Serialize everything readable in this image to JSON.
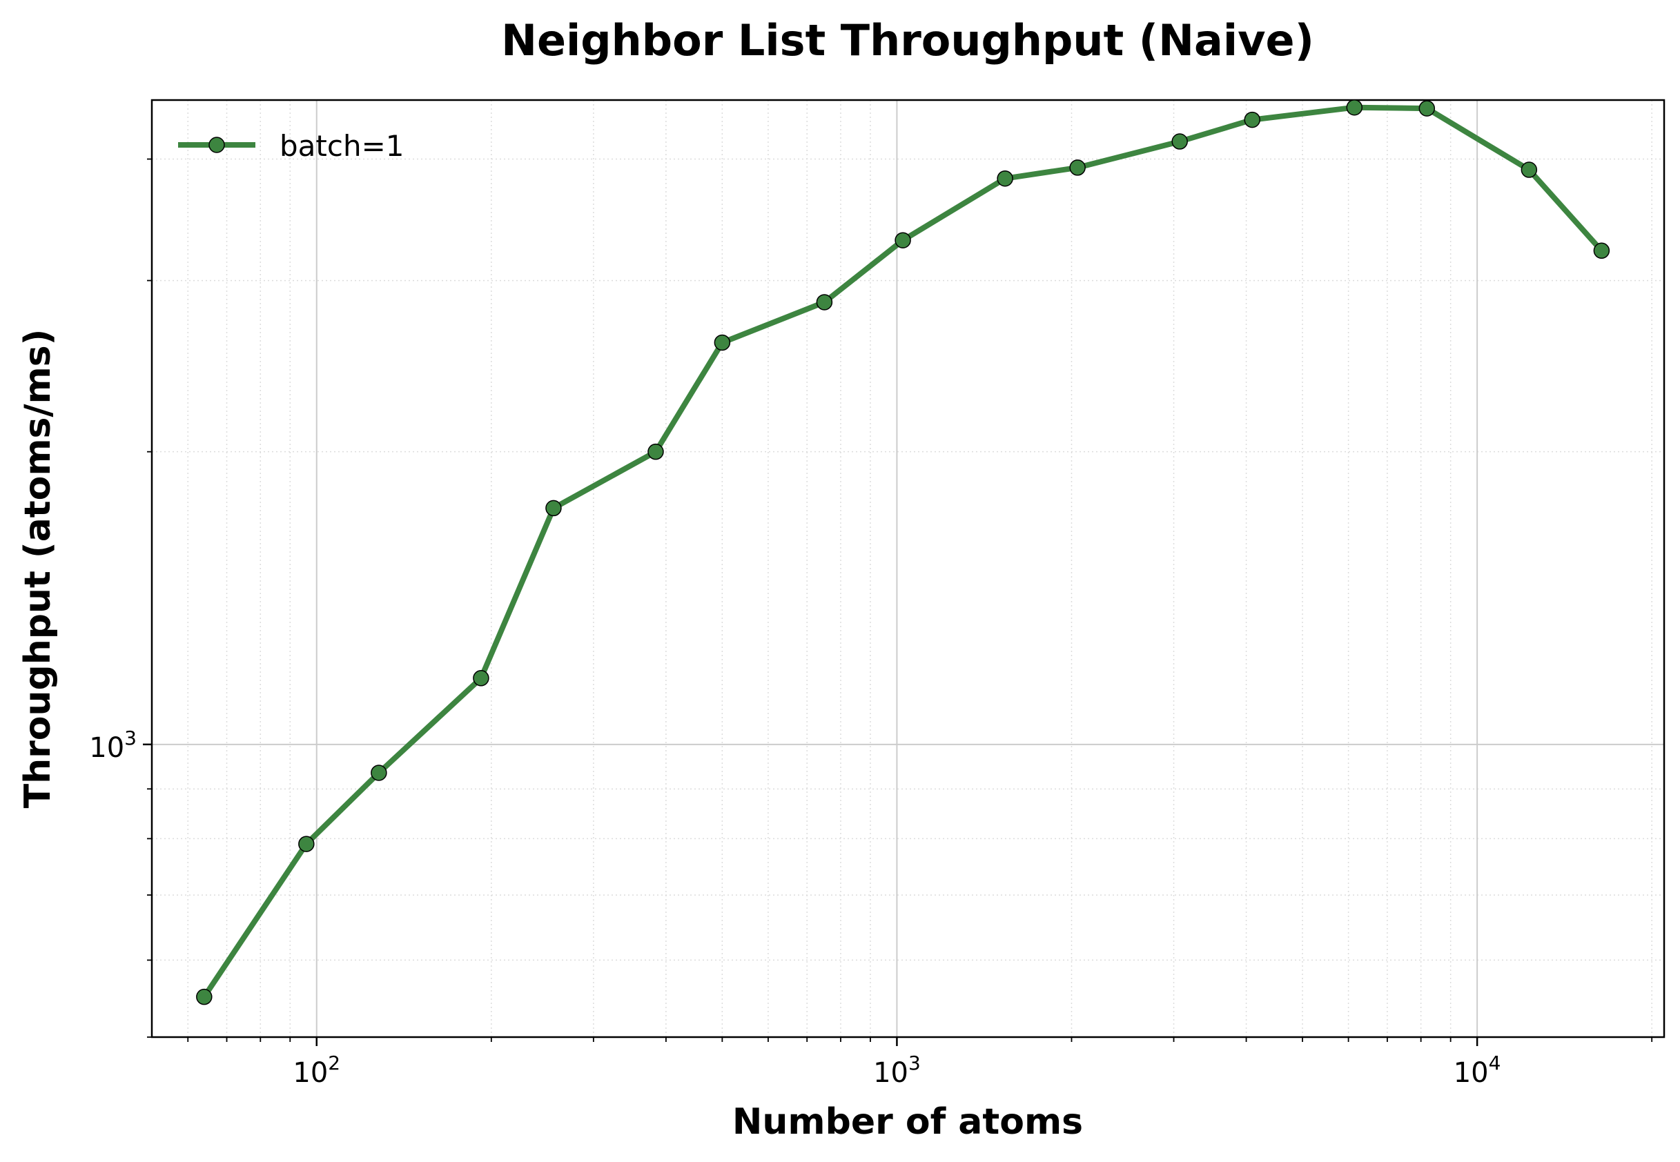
{
  "chart_data": {
    "type": "line",
    "title": "Neighbor List Throughput (Naive)",
    "xlabel": "Number of atoms",
    "ylabel": "Throughput (atoms/ms)",
    "xscale": "log",
    "yscale": "log",
    "xlim": [
      52,
      21000
    ],
    "ylim": [
      500,
      4600
    ],
    "grid": true,
    "legend_position": "top-left",
    "x_ticks": [
      {
        "value": 100,
        "base": "10",
        "exp": "2"
      },
      {
        "value": 1000,
        "base": "10",
        "exp": "3"
      },
      {
        "value": 10000,
        "base": "10",
        "exp": "4"
      }
    ],
    "y_ticks": [
      {
        "value": 1000,
        "base": "10",
        "exp": "3"
      }
    ],
    "series": [
      {
        "name": "batch=1",
        "color": "#3d8540",
        "marker_edge": "#000000",
        "points": [
          {
            "x": 64,
            "y": 550
          },
          {
            "x": 96,
            "y": 790
          },
          {
            "x": 128,
            "y": 935
          },
          {
            "x": 192,
            "y": 1170
          },
          {
            "x": 256,
            "y": 1750
          },
          {
            "x": 384,
            "y": 2000
          },
          {
            "x": 500,
            "y": 2590
          },
          {
            "x": 750,
            "y": 2850
          },
          {
            "x": 1024,
            "y": 3300
          },
          {
            "x": 1536,
            "y": 3820
          },
          {
            "x": 2048,
            "y": 3920
          },
          {
            "x": 3072,
            "y": 4170
          },
          {
            "x": 4096,
            "y": 4390
          },
          {
            "x": 6144,
            "y": 4520
          },
          {
            "x": 8192,
            "y": 4510
          },
          {
            "x": 12288,
            "y": 3900
          },
          {
            "x": 16384,
            "y": 3220
          }
        ]
      }
    ]
  }
}
